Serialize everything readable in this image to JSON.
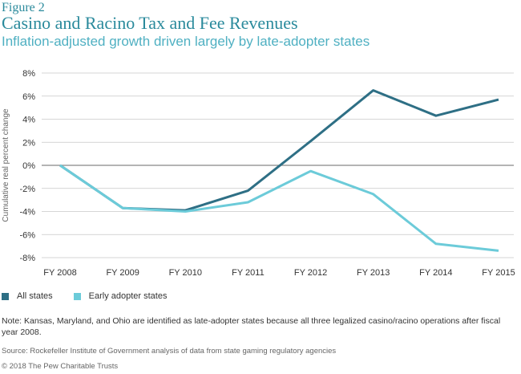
{
  "figure": {
    "label": "Figure 2",
    "title": "Casino and Racino Tax and Fee Revenues",
    "subtitle": "Inflation-adjusted growth driven largely by late-adopter states"
  },
  "chart_data": {
    "type": "line",
    "categories": [
      "FY 2008",
      "FY 2009",
      "FY 2010",
      "FY 2011",
      "FY 2012",
      "FY 2013",
      "FY 2014",
      "FY 2015"
    ],
    "ylabel": "Cumulative real percent change",
    "ylim": [
      -8,
      8
    ],
    "yticks": [
      "8%",
      "6%",
      "4%",
      "2%",
      "0%",
      "-2%",
      "-4%",
      "-6%",
      "-8%"
    ],
    "ytick_values": [
      8,
      6,
      4,
      2,
      0,
      -2,
      -4,
      -6,
      -8
    ],
    "grid": true,
    "legend_position": "bottom-left",
    "series": [
      {
        "name": "All states",
        "color": "#2e6f85",
        "values": [
          0,
          -3.7,
          -3.9,
          -2.2,
          2.1,
          6.5,
          4.3,
          5.7
        ]
      },
      {
        "name": "Early adopter states",
        "color": "#6ccbd9",
        "values": [
          0,
          -3.7,
          -4.0,
          -3.2,
          -0.5,
          -2.5,
          -6.8,
          -7.4
        ]
      }
    ]
  },
  "notes": {
    "note": "Note: Kansas, Maryland, and Ohio are identified as late-adopter states because all three legalized casino/racino operations after fiscal year 2008.",
    "source": "Source: Rockefeller Institute of Government analysis of data from state gaming regulatory agencies",
    "copyright": "© 2018 The Pew Charitable Trusts"
  }
}
